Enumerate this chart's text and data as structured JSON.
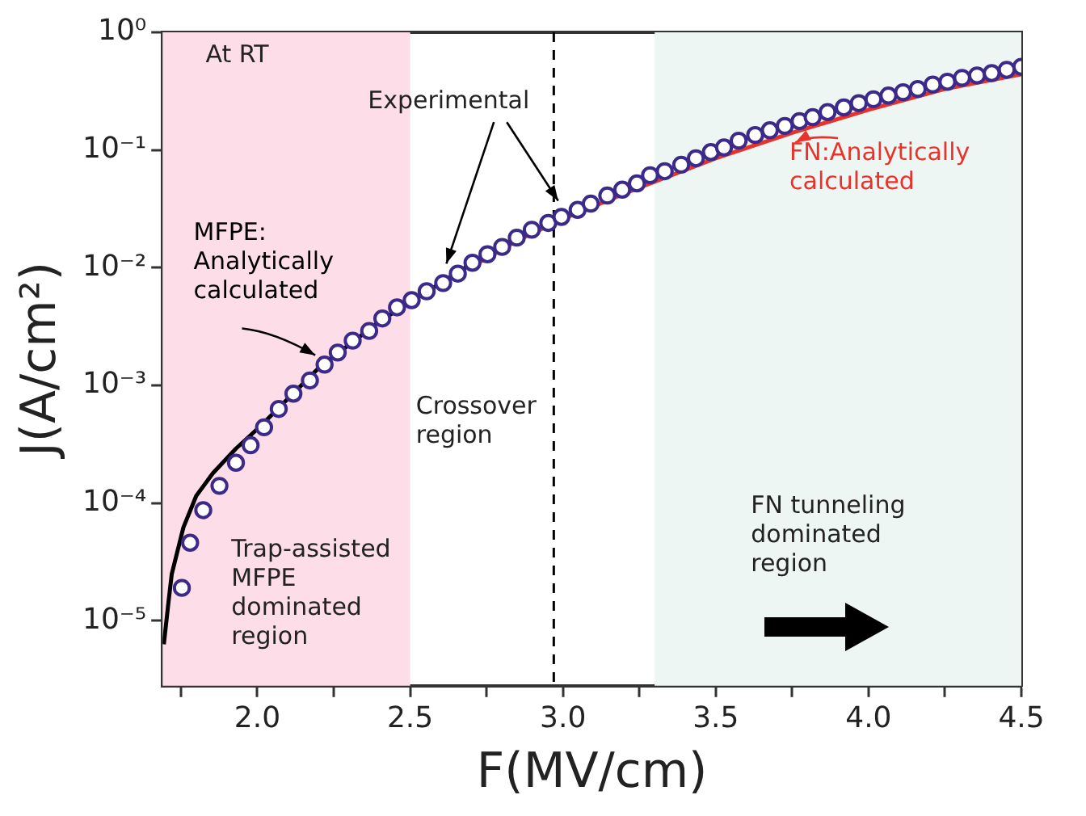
{
  "chart_data": {
    "type": "scatter",
    "xlabel": "F(MV/cm)",
    "ylabel": "J(A/cm²)",
    "log": "y",
    "xlim": [
      1.69,
      4.5
    ],
    "ylim": [
      2.8e-06,
      1
    ],
    "xticks": [
      {
        "value": 1.75,
        "label": null
      },
      {
        "value": 2,
        "label": "2.0"
      },
      {
        "value": 2.25,
        "label": null
      },
      2.5,
      {
        "value": 2.75,
        "label": null
      },
      {
        "value": 3,
        "label": "3.0"
      },
      {
        "value": 3.25,
        "label": null
      },
      3.5,
      {
        "value": 3.75,
        "label": null
      },
      {
        "value": 4,
        "label": "4.0"
      },
      {
        "value": 4.25,
        "label": null
      },
      4.5
    ],
    "yticks": [
      {
        "value": 1e-05,
        "label": "10⁻⁵"
      },
      {
        "value": 0.0001,
        "label": "10⁻⁴"
      },
      {
        "value": 0.001,
        "label": "10⁻³"
      },
      {
        "value": 0.01,
        "label": "10⁻²"
      },
      {
        "value": 0.1,
        "label": "10⁻¹"
      },
      {
        "value": 1,
        "label": "10⁰"
      }
    ],
    "grid": false,
    "series": [
      {
        "name": "Experimental",
        "marker": "circle",
        "color": "#3b2a8a",
        "x": [
          1.753,
          1.78,
          1.823,
          1.876,
          1.93,
          1.978,
          2.022,
          2.07,
          2.118,
          2.172,
          2.22,
          2.263,
          2.312,
          2.366,
          2.409,
          2.457,
          2.505,
          2.554,
          2.608,
          2.656,
          2.704,
          2.753,
          2.801,
          2.849,
          2.898,
          2.952,
          2.995,
          3.048,
          3.091,
          3.145,
          3.194,
          3.242,
          3.285,
          3.333,
          3.387,
          3.435,
          3.484,
          3.527,
          3.575,
          3.629,
          3.677,
          3.726,
          3.774,
          3.817,
          3.866,
          3.919,
          3.968,
          4.016,
          4.065,
          4.113,
          4.161,
          4.21,
          4.258,
          4.306,
          4.355,
          4.403,
          4.452,
          4.5
        ],
        "values": [
          1.9e-05,
          4.6e-05,
          8.7e-05,
          0.00014,
          0.00022,
          0.00031,
          0.00044,
          0.00063,
          0.00085,
          0.0011,
          0.0015,
          0.0019,
          0.0024,
          0.0029,
          0.0037,
          0.0046,
          0.0053,
          0.0063,
          0.0074,
          0.0089,
          0.011,
          0.013,
          0.015,
          0.018,
          0.021,
          0.024,
          0.027,
          0.031,
          0.035,
          0.041,
          0.046,
          0.052,
          0.061,
          0.066,
          0.075,
          0.085,
          0.096,
          0.105,
          0.12,
          0.134,
          0.147,
          0.16,
          0.176,
          0.19,
          0.21,
          0.23,
          0.25,
          0.27,
          0.29,
          0.31,
          0.33,
          0.36,
          0.38,
          0.41,
          0.43,
          0.45,
          0.48,
          0.51
        ]
      },
      {
        "name": "MFPE: Analytically calculated",
        "type": "line",
        "marker": "none",
        "line_style": "solid",
        "color": "#000000",
        "x": [
          1.694,
          1.71,
          1.72,
          1.758,
          1.8,
          1.855,
          1.93,
          2.01,
          2.2,
          2.4,
          2.6,
          2.75,
          2.85
        ],
        "values": [
          6.3e-06,
          1.5e-05,
          2.5e-05,
          6.2e-05,
          0.000115,
          0.00018,
          0.00029,
          0.00045,
          0.0014,
          0.0035,
          0.0074,
          0.013,
          0.018
        ]
      },
      {
        "name": "FN:Analytically calculated",
        "type": "line",
        "marker": "none",
        "line_style": "solid",
        "color": "#e8322a",
        "x": [
          2.715,
          2.85,
          3.0,
          3.25,
          3.5,
          3.75,
          4.0,
          4.25,
          4.5
        ],
        "values": [
          0.0107,
          0.017,
          0.026,
          0.048,
          0.085,
          0.14,
          0.22,
          0.33,
          0.44
        ]
      }
    ],
    "ref_lines": [
      {
        "axis": "x",
        "value": 2.97,
        "color": "#000000",
        "line_style": "dashed"
      }
    ],
    "bands": [
      {
        "axis": "x",
        "from": 1.69,
        "to": 2.5,
        "color": "#fcdde8"
      },
      {
        "axis": "x",
        "from": 3.3,
        "to": 4.5,
        "color": "#eef6f4"
      }
    ],
    "annotations": [
      "At RT",
      "Crossover region",
      "Trap-assisted MFPE dominated region",
      "FN tunneling dominated region"
    ]
  }
}
